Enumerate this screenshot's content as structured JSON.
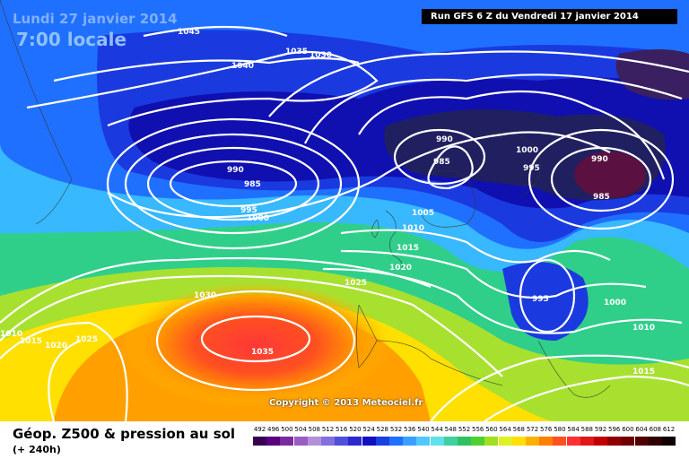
{
  "header": {
    "date": "Lundi 27 janvier 2014",
    "local_time": "7:00 locale",
    "run": "Run GFS 6 Z du Vendredi 17 janvier 2014"
  },
  "copyright": "Copyright © 2013 Meteociel.fr",
  "footer": {
    "title": "Géop. Z500 & pression au sol",
    "subtitle": "(+ 240h)"
  },
  "scale_labels": [
    "492",
    "496",
    "500",
    "504",
    "508",
    "512",
    "516",
    "520",
    "524",
    "528",
    "532",
    "536",
    "540",
    "544",
    "548",
    "552",
    "556",
    "560",
    "564",
    "568",
    "572",
    "576",
    "580",
    "584",
    "588",
    "592",
    "596",
    "600",
    "604",
    "608",
    "612"
  ],
  "scale_colors": [
    "#3a0050",
    "#5a0080",
    "#7a2aa0",
    "#9a5cc0",
    "#b48fd8",
    "#8070e0",
    "#5050d8",
    "#2a2ad0",
    "#1010c0",
    "#1a40e0",
    "#2070ff",
    "#3aa0ff",
    "#50c8ff",
    "#60e0e8",
    "#40d0a0",
    "#30c060",
    "#50d030",
    "#a0e020",
    "#e0f020",
    "#ffe000",
    "#ffb000",
    "#ff8000",
    "#ff5020",
    "#ff3030",
    "#e01818",
    "#c00000",
    "#900000",
    "#700000",
    "#500000",
    "#300000",
    "#100000"
  ],
  "isobar_labels": [
    "1045",
    "1040",
    "1035",
    "1030",
    "990",
    "985",
    "995",
    "1000",
    "990",
    "985",
    "1000",
    "995",
    "990",
    "985",
    "1005",
    "1010",
    "1015",
    "1020",
    "1025",
    "1030",
    "1035",
    "995",
    "1000",
    "1010",
    "1010",
    "1015",
    "1020",
    "1025",
    "1015"
  ]
}
